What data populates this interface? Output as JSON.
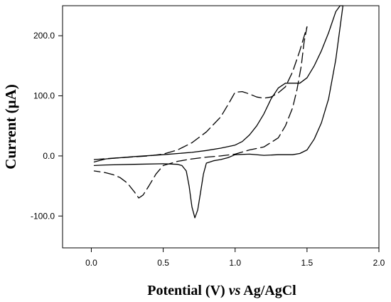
{
  "chart_data": {
    "type": "line",
    "xlabel_parts": [
      "Potential (V) ",
      "vs",
      " Ag/AgCl"
    ],
    "ylabel": "Current (μA)",
    "xlim": [
      -0.2,
      2.0
    ],
    "ylim": [
      -153,
      250
    ],
    "x_ticks": [
      {
        "value": 0.0,
        "label": "0.0"
      },
      {
        "value": 0.5,
        "label": "0.5"
      },
      {
        "value": 1.0,
        "label": "1.0"
      },
      {
        "value": 1.5,
        "label": "1.5"
      },
      {
        "value": 2.0,
        "label": "2.0"
      }
    ],
    "y_ticks": [
      {
        "value": 200,
        "label": "200.0"
      },
      {
        "value": 100,
        "label": "100.0"
      },
      {
        "value": 0,
        "label": "0.0"
      },
      {
        "value": -100,
        "label": "-100.0"
      }
    ],
    "series": [
      {
        "style": "solid",
        "points": [
          [
            0.02,
            -10
          ],
          [
            0.1,
            -5
          ],
          [
            0.3,
            -1
          ],
          [
            0.5,
            2
          ],
          [
            0.7,
            6
          ],
          [
            0.8,
            9
          ],
          [
            0.9,
            13
          ],
          [
            1.0,
            18
          ],
          [
            1.05,
            24
          ],
          [
            1.1,
            35
          ],
          [
            1.15,
            50
          ],
          [
            1.2,
            70
          ],
          [
            1.25,
            95
          ],
          [
            1.3,
            113
          ],
          [
            1.35,
            121
          ],
          [
            1.4,
            121
          ],
          [
            1.45,
            121
          ],
          [
            1.5,
            130
          ],
          [
            1.55,
            150
          ],
          [
            1.6,
            175
          ],
          [
            1.65,
            205
          ],
          [
            1.7,
            240
          ],
          [
            1.73,
            270
          ],
          [
            1.75,
            250
          ],
          [
            1.7,
            160
          ],
          [
            1.65,
            95
          ],
          [
            1.6,
            55
          ],
          [
            1.55,
            28
          ],
          [
            1.5,
            10
          ],
          [
            1.45,
            4
          ],
          [
            1.4,
            2
          ],
          [
            1.3,
            2
          ],
          [
            1.2,
            1
          ],
          [
            1.1,
            3
          ],
          [
            1.0,
            2
          ],
          [
            0.95,
            -3
          ],
          [
            0.9,
            -6
          ],
          [
            0.85,
            -8
          ],
          [
            0.8,
            -12
          ],
          [
            0.78,
            -30
          ],
          [
            0.76,
            -60
          ],
          [
            0.74,
            -90
          ],
          [
            0.72,
            -103
          ],
          [
            0.7,
            -85
          ],
          [
            0.68,
            -50
          ],
          [
            0.66,
            -25
          ],
          [
            0.63,
            -16
          ],
          [
            0.6,
            -14
          ],
          [
            0.5,
            -13
          ],
          [
            0.3,
            -14
          ],
          [
            0.1,
            -15
          ],
          [
            0.02,
            -16
          ]
        ]
      },
      {
        "style": "dashed",
        "points": [
          [
            0.02,
            -6
          ],
          [
            0.2,
            -3
          ],
          [
            0.4,
            0
          ],
          [
            0.5,
            3
          ],
          [
            0.6,
            10
          ],
          [
            0.7,
            22
          ],
          [
            0.8,
            40
          ],
          [
            0.9,
            65
          ],
          [
            0.95,
            85
          ],
          [
            1.0,
            106
          ],
          [
            1.05,
            107
          ],
          [
            1.1,
            103
          ],
          [
            1.15,
            98
          ],
          [
            1.2,
            96
          ],
          [
            1.25,
            98
          ],
          [
            1.3,
            105
          ],
          [
            1.35,
            115
          ],
          [
            1.4,
            140
          ],
          [
            1.45,
            175
          ],
          [
            1.5,
            215
          ],
          [
            1.48,
            190
          ],
          [
            1.46,
            150
          ],
          [
            1.43,
            110
          ],
          [
            1.4,
            80
          ],
          [
            1.35,
            50
          ],
          [
            1.3,
            30
          ],
          [
            1.2,
            15
          ],
          [
            1.1,
            10
          ],
          [
            1.0,
            3
          ],
          [
            0.9,
            0
          ],
          [
            0.8,
            -2
          ],
          [
            0.7,
            -5
          ],
          [
            0.6,
            -9
          ],
          [
            0.5,
            -16
          ],
          [
            0.45,
            -30
          ],
          [
            0.4,
            -50
          ],
          [
            0.36,
            -65
          ],
          [
            0.33,
            -70
          ],
          [
            0.3,
            -60
          ],
          [
            0.25,
            -45
          ],
          [
            0.2,
            -36
          ],
          [
            0.15,
            -31
          ],
          [
            0.1,
            -28
          ],
          [
            0.05,
            -26
          ],
          [
            0.02,
            -25
          ]
        ]
      }
    ]
  }
}
